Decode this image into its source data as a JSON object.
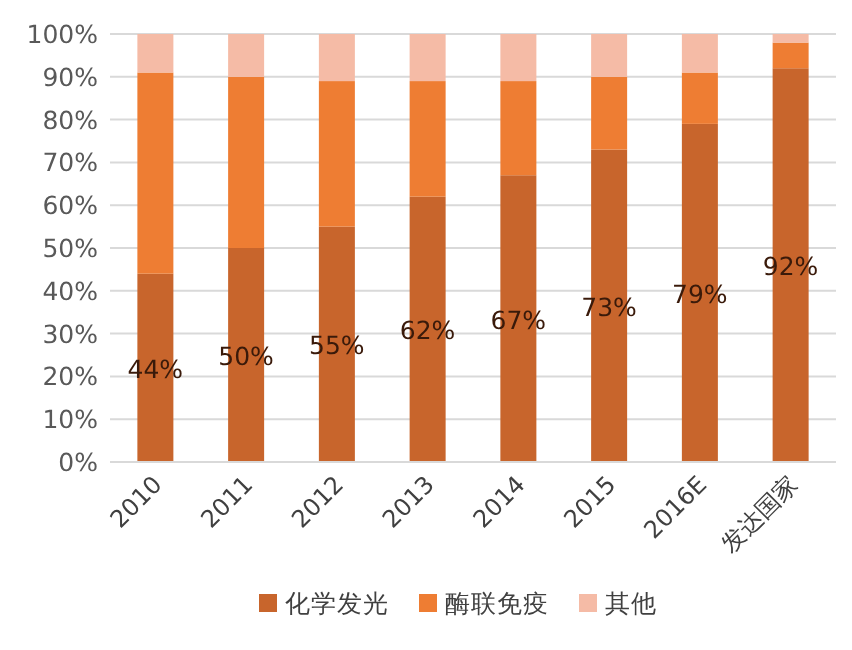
{
  "chart_data": {
    "type": "bar",
    "stacked": true,
    "categories": [
      "2010",
      "2011",
      "2012",
      "2013",
      "2014",
      "2015",
      "2016E",
      "发达国家"
    ],
    "series": [
      {
        "name": "化学发光",
        "color": "#c8652c",
        "values": [
          44,
          50,
          55,
          62,
          67,
          73,
          79,
          92
        ],
        "value_labels": [
          "44%",
          "50%",
          "55%",
          "62%",
          "67%",
          "73%",
          "79%",
          "92%"
        ]
      },
      {
        "name": "酶联免疫",
        "color": "#ee7d33",
        "values": [
          47,
          40,
          34,
          27,
          22,
          17,
          12,
          6
        ]
      },
      {
        "name": "其他",
        "color": "#f5bba6",
        "values": [
          9,
          10,
          11,
          11,
          11,
          10,
          9,
          2
        ]
      }
    ],
    "ylim": [
      0,
      100
    ],
    "yticks": [
      {
        "value": 0,
        "label": "0%"
      },
      {
        "value": 10,
        "label": "10%"
      },
      {
        "value": 20,
        "label": "20%"
      },
      {
        "value": 30,
        "label": "30%"
      },
      {
        "value": 40,
        "label": "40%"
      },
      {
        "value": 50,
        "label": "50%"
      },
      {
        "value": 60,
        "label": "60%"
      },
      {
        "value": 70,
        "label": "70%"
      },
      {
        "value": 80,
        "label": "80%"
      },
      {
        "value": 90,
        "label": "90%"
      },
      {
        "value": 100,
        "label": "100%"
      }
    ],
    "grid": "y",
    "legend": "bottom"
  }
}
